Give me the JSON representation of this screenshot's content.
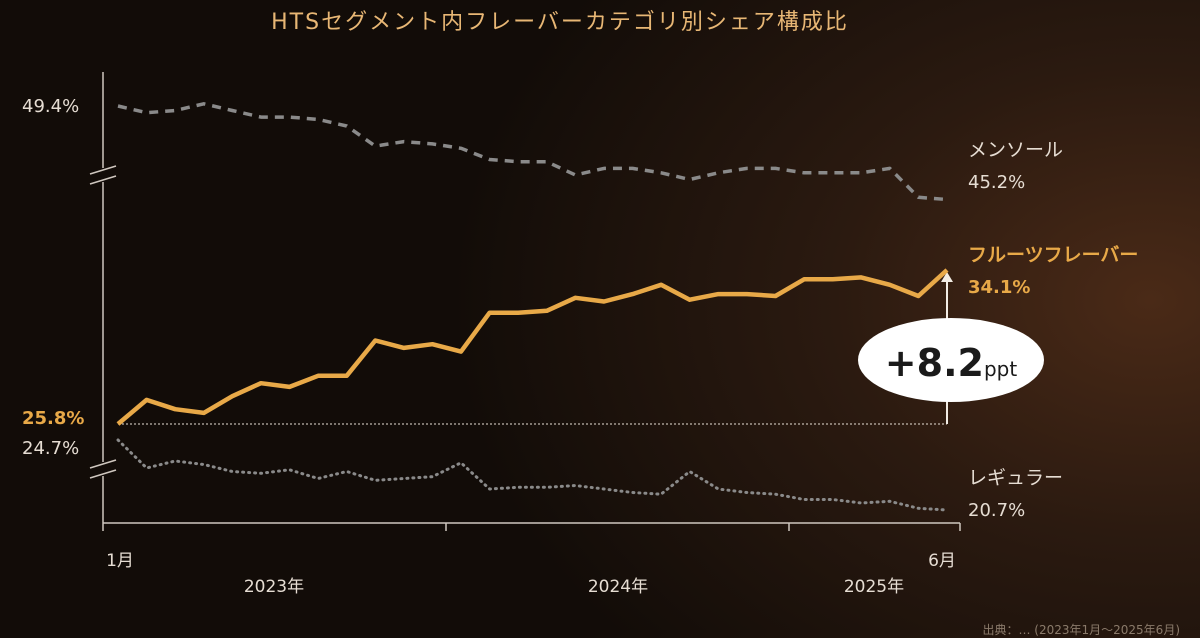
{
  "chart_data": {
    "type": "line",
    "title": "HTSセグメント内フレーバーカテゴリ別シェア構成比",
    "x_start_label": "1月",
    "x_end_label": "6月",
    "year_labels": [
      "2023年",
      "2024年",
      "2025年"
    ],
    "x": [
      "2023-01",
      "2023-02",
      "2023-03",
      "2023-04",
      "2023-05",
      "2023-06",
      "2023-07",
      "2023-08",
      "2023-09",
      "2023-10",
      "2023-11",
      "2023-12",
      "2024-01",
      "2024-02",
      "2024-03",
      "2024-04",
      "2024-05",
      "2024-06",
      "2024-07",
      "2024-08",
      "2024-09",
      "2024-10",
      "2024-11",
      "2024-12",
      "2025-01",
      "2025-02",
      "2025-03",
      "2025-04",
      "2025-05",
      "2025-06"
    ],
    "series": [
      {
        "name": "メンソール",
        "end_value_label": "45.2%",
        "start_value_label": "49.4%",
        "color": "#8a8a8a",
        "style": "dashed",
        "values": [
          49.4,
          49.1,
          49.2,
          49.5,
          49.2,
          48.9,
          48.9,
          48.8,
          48.5,
          47.6,
          47.8,
          47.7,
          47.5,
          47.0,
          46.9,
          46.9,
          46.3,
          46.6,
          46.6,
          46.4,
          46.1,
          46.4,
          46.6,
          46.6,
          46.4,
          46.4,
          46.4,
          46.6,
          45.3,
          45.2
        ]
      },
      {
        "name": "フルーツフレーバー",
        "end_value_label": "34.1%",
        "start_value_label": "25.8%",
        "color": "#e8a948",
        "style": "solid",
        "values": [
          25.8,
          27.1,
          26.6,
          26.4,
          27.3,
          28.0,
          27.8,
          28.4,
          28.4,
          30.3,
          29.9,
          30.1,
          29.7,
          31.8,
          31.8,
          31.9,
          32.6,
          32.4,
          32.8,
          33.3,
          32.5,
          32.8,
          32.8,
          32.7,
          33.6,
          33.6,
          33.7,
          33.3,
          32.7,
          34.1
        ]
      },
      {
        "name": "レギュラー",
        "end_value_label": "20.7%",
        "start_value_label": "24.7%",
        "color": "#8a8a8a",
        "style": "dotted",
        "values": [
          24.7,
          23.1,
          23.5,
          23.3,
          22.9,
          22.8,
          23.0,
          22.5,
          22.9,
          22.4,
          22.5,
          22.6,
          23.4,
          21.9,
          22.0,
          22.0,
          22.1,
          21.9,
          21.7,
          21.6,
          22.9,
          21.9,
          21.7,
          21.6,
          21.3,
          21.3,
          21.1,
          21.2,
          20.8,
          20.7
        ]
      }
    ],
    "annotation": {
      "value": "+8.2",
      "unit": "ppt"
    },
    "axis_breaks": true,
    "grid": false
  },
  "source_note": "出典：… (2023年1月〜2025年6月)"
}
